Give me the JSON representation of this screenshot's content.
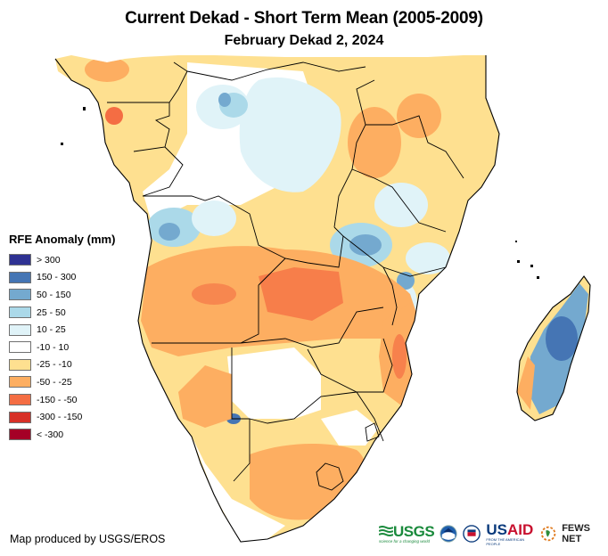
{
  "title": "Current Dekad - Short Term Mean (2005-2009)",
  "subtitle": "February Dekad 2, 2024",
  "legend": {
    "title": "RFE Anomaly (mm)",
    "items": [
      {
        "label": "> 300",
        "color": "#2e3192"
      },
      {
        "label": "150 - 300",
        "color": "#4575b4"
      },
      {
        "label": "50 - 150",
        "color": "#74a9cf"
      },
      {
        "label": "25 - 50",
        "color": "#abd9e9"
      },
      {
        "label": "10 - 25",
        "color": "#e0f3f8"
      },
      {
        "label": "-10 - 10",
        "color": "#ffffff"
      },
      {
        "label": "-25 - -10",
        "color": "#fee090"
      },
      {
        "label": "-50 - -25",
        "color": "#fdae61"
      },
      {
        "label": "-150 - -50",
        "color": "#f46d43"
      },
      {
        "label": "-300 - -150",
        "color": "#d73027"
      },
      {
        "label": "< -300",
        "color": "#a50026"
      }
    ]
  },
  "credit": "Map produced by USGS/EROS",
  "logos": {
    "usgs": "USGS",
    "usgs_tagline": "science for a changing world",
    "noaa": "NOAA",
    "usaid": "USAID",
    "usaid_tagline": "FROM THE AMERICAN PEOPLE",
    "fews": "FEWS NET"
  },
  "map": {
    "region": "Southern and Central Africa",
    "palette": {
      "blue_dark": "#4575b4",
      "blue_mid": "#74a9cf",
      "blue_light": "#abd9e9",
      "blue_pale": "#e0f3f8",
      "yellow": "#fee090",
      "orange": "#fdae61",
      "orange_red": "#f46d43",
      "red": "#d73027",
      "border": "#000000"
    }
  }
}
